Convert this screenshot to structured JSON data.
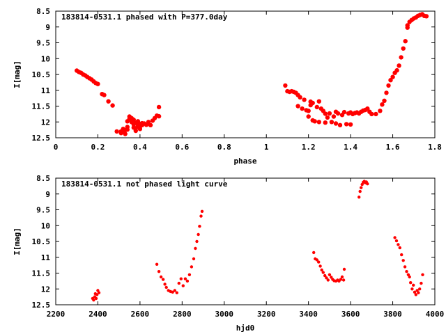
{
  "chart_data": [
    {
      "type": "scatter",
      "title": "183814-0531.1 phased with P=377.0day",
      "xlabel": "phase",
      "ylabel": "I[mag]",
      "xlim": [
        0,
        1.8
      ],
      "ylim": [
        12.5,
        8.5
      ],
      "y_inverted": true,
      "x_ticks": [
        "0",
        "0.2",
        "0.4",
        "0.6",
        "0.8",
        "1",
        "1.2",
        "1.4",
        "1.6",
        "1.8"
      ],
      "y_ticks": [
        "8.5",
        "9",
        "9.5",
        "10",
        "10.5",
        "11",
        "11.5",
        "12",
        "12.5"
      ],
      "grid": false,
      "marker": "filled circle",
      "color": "#ff0000",
      "points": [
        [
          0.1,
          10.38
        ],
        [
          0.11,
          10.42
        ],
        [
          0.12,
          10.45
        ],
        [
          0.13,
          10.5
        ],
        [
          0.14,
          10.53
        ],
        [
          0.15,
          10.58
        ],
        [
          0.16,
          10.62
        ],
        [
          0.17,
          10.66
        ],
        [
          0.18,
          10.72
        ],
        [
          0.19,
          10.77
        ],
        [
          0.2,
          10.8
        ],
        [
          0.22,
          11.12
        ],
        [
          0.23,
          11.15
        ],
        [
          0.25,
          11.35
        ],
        [
          0.27,
          11.48
        ],
        [
          0.29,
          12.3
        ],
        [
          0.31,
          12.35
        ],
        [
          0.31,
          12.3
        ],
        [
          0.32,
          12.28
        ],
        [
          0.32,
          12.22
        ],
        [
          0.33,
          12.38
        ],
        [
          0.33,
          12.26
        ],
        [
          0.34,
          12.16
        ],
        [
          0.34,
          11.98
        ],
        [
          0.34,
          12.24
        ],
        [
          0.35,
          11.83
        ],
        [
          0.35,
          11.9
        ],
        [
          0.36,
          11.88
        ],
        [
          0.36,
          12.0
        ],
        [
          0.37,
          11.93
        ],
        [
          0.37,
          12.18
        ],
        [
          0.37,
          12.08
        ],
        [
          0.38,
          12.28
        ],
        [
          0.38,
          12.2
        ],
        [
          0.38,
          12.03
        ],
        [
          0.39,
          12.13
        ],
        [
          0.39,
          12.04
        ],
        [
          0.39,
          11.98
        ],
        [
          0.4,
          12.06
        ],
        [
          0.4,
          12.22
        ],
        [
          0.4,
          12.15
        ],
        [
          0.41,
          12.04
        ],
        [
          0.41,
          12.1
        ],
        [
          0.42,
          12.05
        ],
        [
          0.43,
          12.09
        ],
        [
          0.44,
          12.0
        ],
        [
          0.45,
          12.1
        ],
        [
          0.46,
          11.96
        ],
        [
          0.47,
          11.88
        ],
        [
          0.48,
          11.8
        ],
        [
          0.49,
          11.53
        ],
        [
          0.49,
          11.82
        ],
        [
          1.09,
          10.85
        ],
        [
          1.1,
          11.03
        ],
        [
          1.11,
          11.05
        ],
        [
          1.12,
          11.03
        ],
        [
          1.13,
          11.05
        ],
        [
          1.14,
          11.08
        ],
        [
          1.15,
          11.15
        ],
        [
          1.15,
          11.5
        ],
        [
          1.16,
          11.22
        ],
        [
          1.17,
          11.58
        ],
        [
          1.18,
          11.3
        ],
        [
          1.19,
          11.63
        ],
        [
          1.2,
          11.65
        ],
        [
          1.2,
          11.83
        ],
        [
          1.21,
          11.47
        ],
        [
          1.21,
          11.36
        ],
        [
          1.22,
          11.95
        ],
        [
          1.22,
          11.4
        ],
        [
          1.23,
          11.98
        ],
        [
          1.24,
          11.53
        ],
        [
          1.25,
          11.35
        ],
        [
          1.25,
          12.0
        ],
        [
          1.26,
          11.58
        ],
        [
          1.27,
          11.65
        ],
        [
          1.28,
          12.02
        ],
        [
          1.28,
          11.74
        ],
        [
          1.29,
          11.86
        ],
        [
          1.3,
          11.73
        ],
        [
          1.31,
          12.0
        ],
        [
          1.32,
          11.83
        ],
        [
          1.33,
          11.68
        ],
        [
          1.33,
          12.05
        ],
        [
          1.34,
          11.73
        ],
        [
          1.35,
          12.1
        ],
        [
          1.36,
          11.78
        ],
        [
          1.37,
          11.69
        ],
        [
          1.38,
          12.07
        ],
        [
          1.39,
          11.73
        ],
        [
          1.4,
          11.7
        ],
        [
          1.4,
          12.08
        ],
        [
          1.41,
          11.75
        ],
        [
          1.42,
          11.72
        ],
        [
          1.43,
          11.7
        ],
        [
          1.44,
          11.73
        ],
        [
          1.45,
          11.68
        ],
        [
          1.46,
          11.64
        ],
        [
          1.47,
          11.62
        ],
        [
          1.48,
          11.58
        ],
        [
          1.49,
          11.68
        ],
        [
          1.5,
          11.75
        ],
        [
          1.52,
          11.75
        ],
        [
          1.54,
          11.65
        ],
        [
          1.55,
          11.45
        ],
        [
          1.56,
          11.33
        ],
        [
          1.57,
          11.08
        ],
        [
          1.58,
          10.85
        ],
        [
          1.59,
          10.68
        ],
        [
          1.6,
          10.58
        ],
        [
          1.61,
          10.45
        ],
        [
          1.62,
          10.37
        ],
        [
          1.63,
          10.22
        ],
        [
          1.64,
          9.96
        ],
        [
          1.65,
          9.68
        ],
        [
          1.66,
          9.45
        ],
        [
          1.67,
          9.02
        ],
        [
          1.67,
          8.95
        ],
        [
          1.68,
          8.84
        ],
        [
          1.69,
          8.78
        ],
        [
          1.7,
          8.73
        ],
        [
          1.71,
          8.7
        ],
        [
          1.72,
          8.65
        ],
        [
          1.73,
          8.62
        ],
        [
          1.74,
          8.6
        ],
        [
          1.75,
          8.65
        ],
        [
          1.76,
          8.66
        ]
      ]
    },
    {
      "type": "scatter",
      "title": "183814-0531.1 not phased light curve",
      "xlabel": "hjd0",
      "ylabel": "I[mag]",
      "xlim": [
        2200,
        4000
      ],
      "ylim": [
        12.5,
        8.5
      ],
      "y_inverted": true,
      "x_ticks": [
        "2200",
        "2400",
        "2600",
        "2800",
        "3000",
        "3200",
        "3400",
        "3600",
        "3800",
        "4000"
      ],
      "y_ticks": [
        "8.5",
        "9",
        "9.5",
        "10",
        "10.5",
        "11",
        "11.5",
        "12",
        "12.5"
      ],
      "grid": false,
      "marker": "small filled circle",
      "color": "#ff0000",
      "points": [
        [
          2375,
          12.3
        ],
        [
          2380,
          12.35
        ],
        [
          2385,
          12.25
        ],
        [
          2388,
          12.15
        ],
        [
          2392,
          12.3
        ],
        [
          2396,
          12.18
        ],
        [
          2400,
          12.05
        ],
        [
          2405,
          12.12
        ],
        [
          2680,
          11.22
        ],
        [
          2690,
          11.45
        ],
        [
          2700,
          11.62
        ],
        [
          2710,
          11.7
        ],
        [
          2718,
          11.85
        ],
        [
          2725,
          11.95
        ],
        [
          2735,
          12.05
        ],
        [
          2745,
          12.08
        ],
        [
          2755,
          12.1
        ],
        [
          2765,
          12.05
        ],
        [
          2775,
          12.12
        ],
        [
          2785,
          11.82
        ],
        [
          2795,
          11.68
        ],
        [
          2805,
          11.9
        ],
        [
          2815,
          11.68
        ],
        [
          2825,
          11.75
        ],
        [
          2835,
          11.55
        ],
        [
          2845,
          11.3
        ],
        [
          2855,
          11.05
        ],
        [
          2863,
          10.72
        ],
        [
          2870,
          10.5
        ],
        [
          2877,
          10.28
        ],
        [
          2883,
          10.02
        ],
        [
          2890,
          9.7
        ],
        [
          2895,
          9.55
        ],
        [
          3425,
          10.85
        ],
        [
          3432,
          11.05
        ],
        [
          3440,
          11.08
        ],
        [
          3448,
          11.15
        ],
        [
          3456,
          11.28
        ],
        [
          3463,
          11.4
        ],
        [
          3470,
          11.48
        ],
        [
          3478,
          11.58
        ],
        [
          3485,
          11.65
        ],
        [
          3493,
          11.72
        ],
        [
          3500,
          11.55
        ],
        [
          3508,
          11.63
        ],
        [
          3515,
          11.7
        ],
        [
          3522,
          11.74
        ],
        [
          3530,
          11.75
        ],
        [
          3538,
          11.72
        ],
        [
          3545,
          11.75
        ],
        [
          3553,
          11.7
        ],
        [
          3560,
          11.62
        ],
        [
          3567,
          11.72
        ],
        [
          3570,
          11.38
        ],
        [
          3640,
          9.1
        ],
        [
          3645,
          8.92
        ],
        [
          3650,
          8.8
        ],
        [
          3655,
          8.7
        ],
        [
          3660,
          8.63
        ],
        [
          3665,
          8.6
        ],
        [
          3670,
          8.65
        ],
        [
          3675,
          8.62
        ],
        [
          3680,
          8.68
        ],
        [
          3810,
          10.38
        ],
        [
          3818,
          10.48
        ],
        [
          3826,
          10.6
        ],
        [
          3834,
          10.7
        ],
        [
          3842,
          10.92
        ],
        [
          3850,
          11.1
        ],
        [
          3858,
          11.3
        ],
        [
          3866,
          11.45
        ],
        [
          3874,
          11.55
        ],
        [
          3880,
          11.62
        ],
        [
          3885,
          11.8
        ],
        [
          3892,
          12.0
        ],
        [
          3898,
          11.88
        ],
        [
          3904,
          12.1
        ],
        [
          3910,
          12.18
        ],
        [
          3916,
          12.05
        ],
        [
          3922,
          12.12
        ],
        [
          3928,
          12.0
        ],
        [
          3935,
          11.82
        ],
        [
          3942,
          11.55
        ]
      ]
    }
  ]
}
